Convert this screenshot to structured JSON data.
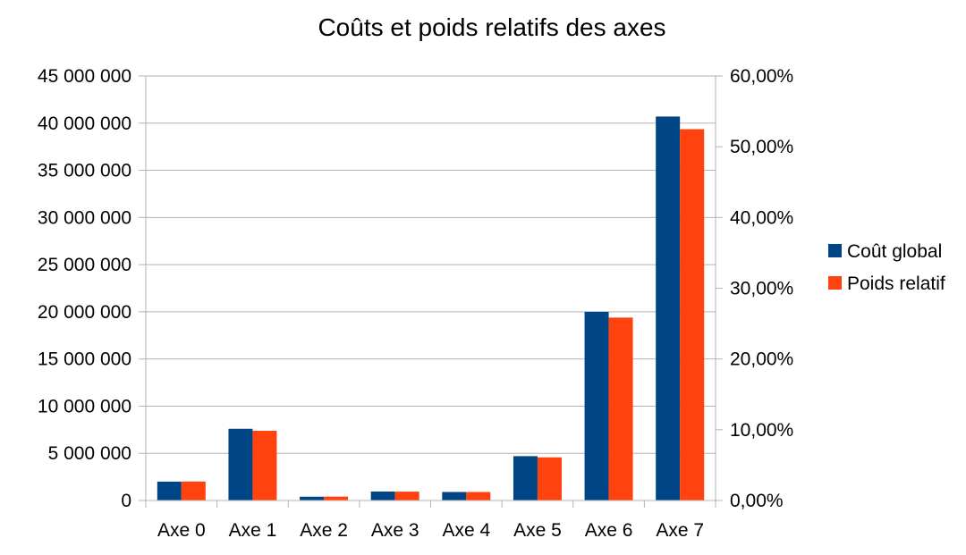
{
  "chart_data": {
    "type": "bar",
    "title": "Coûts et poids relatifs des axes",
    "categories": [
      "Axe 0",
      "Axe 1",
      "Axe 2",
      "Axe 3",
      "Axe 4",
      "Axe 5",
      "Axe 6",
      "Axe 7"
    ],
    "series": [
      {
        "name": "Coût global",
        "axis": "left",
        "color": "#004586",
        "values": [
          2000000,
          7600000,
          400000,
          950000,
          900000,
          4700000,
          20000000,
          40700000
        ]
      },
      {
        "name": "Poids relatif",
        "axis": "right",
        "color": "#FF420E",
        "values": [
          0.0268,
          0.0985,
          0.0055,
          0.0125,
          0.012,
          0.061,
          0.2585,
          0.5248
        ]
      }
    ],
    "y_left": {
      "ylim": [
        0,
        45000000
      ],
      "ticks": [
        0,
        5000000,
        10000000,
        15000000,
        20000000,
        25000000,
        30000000,
        35000000,
        40000000,
        45000000
      ],
      "tick_labels": [
        "0",
        "5 000 000",
        "10 000 000",
        "15 000 000",
        "20 000 000",
        "25 000 000",
        "30 000 000",
        "35 000 000",
        "40 000 000",
        "45 000 000"
      ]
    },
    "y_right": {
      "ylim": [
        0,
        0.6
      ],
      "ticks": [
        0,
        0.1,
        0.2,
        0.3,
        0.4,
        0.5,
        0.6
      ],
      "tick_labels": [
        "0,00%",
        "10,00%",
        "20,00%",
        "30,00%",
        "40,00%",
        "50,00%",
        "60,00%"
      ]
    },
    "xlabel": "",
    "ylabel": "",
    "grid": true,
    "legend": {
      "placement": "right",
      "entries": [
        "Coût global",
        "Poids relatif"
      ]
    }
  }
}
